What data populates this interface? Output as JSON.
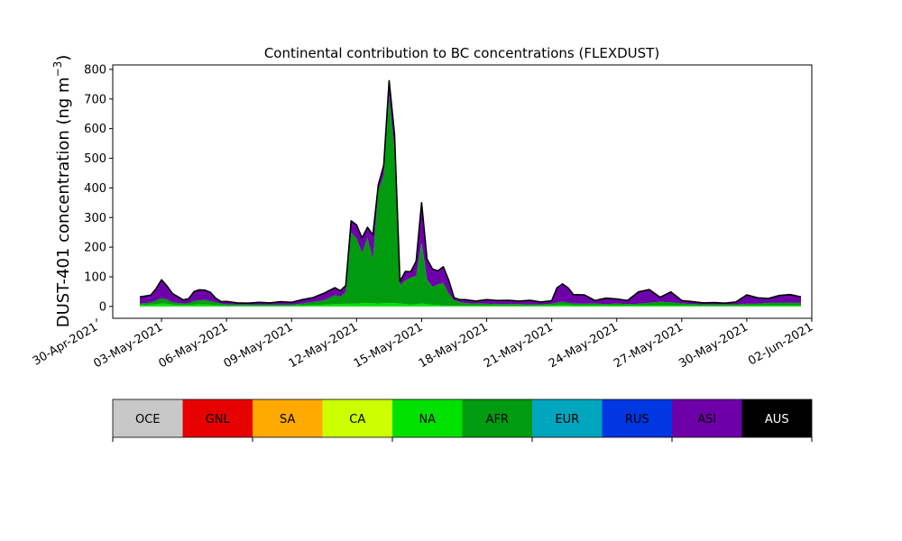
{
  "chart_data": {
    "type": "area",
    "title": "Continental contribution to BC concentrations (FLEXDUST)",
    "ylabel_main": "DUST-401 concentration (ng m",
    "ylabel_sup": "−3",
    "ylabel_close": ")",
    "xlabel": "",
    "ylim": [
      -40,
      815
    ],
    "xlim": [
      "2021-04-30T18:00",
      "2021-06-02T00:00"
    ],
    "y_ticks": [
      0,
      100,
      200,
      300,
      400,
      500,
      600,
      700,
      800
    ],
    "x_ticks": [
      "2021-04-30",
      "2021-05-03",
      "2021-05-06",
      "2021-05-09",
      "2021-05-12",
      "2021-05-15",
      "2021-05-18",
      "2021-05-21",
      "2021-05-24",
      "2021-05-27",
      "2021-05-30",
      "2021-06-02"
    ],
    "x_tick_labels": [
      "30-Apr-2021",
      "03-May-2021",
      "06-May-2021",
      "09-May-2021",
      "12-May-2021",
      "15-May-2021",
      "18-May-2021",
      "21-May-2021",
      "24-May-2021",
      "27-May-2021",
      "30-May-2021",
      "02-Jun-2021"
    ],
    "grid": false,
    "legend_position": "bottom colorbar",
    "legend": [
      {
        "name": "OCE",
        "color": "#c8c8c8",
        "text_color": "#000000"
      },
      {
        "name": "GNL",
        "color": "#e60000",
        "text_color": "#000000"
      },
      {
        "name": "SA",
        "color": "#ffaa00",
        "text_color": "#000000"
      },
      {
        "name": "CA",
        "color": "#ccff00",
        "text_color": "#000000"
      },
      {
        "name": "NA",
        "color": "#00e100",
        "text_color": "#000000"
      },
      {
        "name": "AFR",
        "color": "#009b0f",
        "text_color": "#000000"
      },
      {
        "name": "EUR",
        "color": "#00a5be",
        "text_color": "#000000"
      },
      {
        "name": "RUS",
        "color": "#0037e1",
        "text_color": "#000000"
      },
      {
        "name": "ASI",
        "color": "#6e00aa",
        "text_color": "#000000"
      },
      {
        "name": "AUS",
        "color": "#000000",
        "text_color": "#ffffff"
      }
    ],
    "x": [
      "2021-05-02T00:00",
      "2021-05-02T12:00",
      "2021-05-02T18:00",
      "2021-05-03T00:00",
      "2021-05-03T06:00",
      "2021-05-03T12:00",
      "2021-05-04T00:00",
      "2021-05-04T06:00",
      "2021-05-04T12:00",
      "2021-05-04T18:00",
      "2021-05-05T00:00",
      "2021-05-05T06:00",
      "2021-05-05T12:00",
      "2021-05-05T18:00",
      "2021-05-06T00:00",
      "2021-05-06T12:00",
      "2021-05-07T00:00",
      "2021-05-07T12:00",
      "2021-05-08T00:00",
      "2021-05-08T12:00",
      "2021-05-09T00:00",
      "2021-05-09T12:00",
      "2021-05-10T00:00",
      "2021-05-10T12:00",
      "2021-05-11T00:00",
      "2021-05-11T06:00",
      "2021-05-11T12:00",
      "2021-05-11T18:00",
      "2021-05-12T00:00",
      "2021-05-12T06:00",
      "2021-05-12T12:00",
      "2021-05-12T18:00",
      "2021-05-13T00:00",
      "2021-05-13T06:00",
      "2021-05-13T12:00",
      "2021-05-13T18:00",
      "2021-05-14T00:00",
      "2021-05-14T06:00",
      "2021-05-14T12:00",
      "2021-05-14T18:00",
      "2021-05-15T00:00",
      "2021-05-15T06:00",
      "2021-05-15T12:00",
      "2021-05-15T18:00",
      "2021-05-16T00:00",
      "2021-05-16T06:00",
      "2021-05-16T12:00",
      "2021-05-16T18:00",
      "2021-05-17T00:00",
      "2021-05-17T12:00",
      "2021-05-18T00:00",
      "2021-05-18T12:00",
      "2021-05-19T00:00",
      "2021-05-19T12:00",
      "2021-05-20T00:00",
      "2021-05-20T12:00",
      "2021-05-21T00:00",
      "2021-05-21T06:00",
      "2021-05-21T12:00",
      "2021-05-21T18:00",
      "2021-05-22T00:00",
      "2021-05-22T12:00",
      "2021-05-23T00:00",
      "2021-05-23T12:00",
      "2021-05-24T00:00",
      "2021-05-24T12:00",
      "2021-05-25T00:00",
      "2021-05-25T12:00",
      "2021-05-26T00:00",
      "2021-05-26T12:00",
      "2021-05-27T00:00",
      "2021-05-27T12:00",
      "2021-05-28T00:00",
      "2021-05-28T12:00",
      "2021-05-29T00:00",
      "2021-05-29T12:00",
      "2021-05-30T00:00",
      "2021-05-30T12:00",
      "2021-05-31T00:00",
      "2021-05-31T12:00",
      "2021-06-01T00:00",
      "2021-06-01T12:00"
    ],
    "series": [
      {
        "name": "NA",
        "color": "#00e100",
        "values": [
          5,
          6,
          8,
          10,
          9,
          6,
          5,
          5,
          6,
          7,
          7,
          6,
          5,
          4,
          3,
          3,
          3,
          3,
          3,
          3,
          3,
          4,
          5,
          6,
          8,
          8,
          9,
          9,
          10,
          11,
          12,
          11,
          10,
          11,
          12,
          11,
          10,
          8,
          7,
          8,
          10,
          8,
          6,
          5,
          4,
          3,
          3,
          3,
          3,
          3,
          3,
          3,
          3,
          3,
          3,
          3,
          4,
          5,
          6,
          5,
          4,
          4,
          4,
          4,
          4,
          4,
          4,
          4,
          4,
          4,
          4,
          3,
          3,
          3,
          3,
          3,
          3,
          4,
          4,
          4,
          4,
          4
        ]
      },
      {
        "name": "AFR",
        "color": "#009b0f",
        "values": [
          5,
          7,
          12,
          18,
          15,
          8,
          5,
          6,
          12,
          14,
          15,
          12,
          9,
          6,
          4,
          3,
          3,
          3,
          3,
          3,
          3,
          6,
          10,
          15,
          30,
          25,
          40,
          240,
          220,
          170,
          220,
          150,
          380,
          430,
          700,
          510,
          60,
          80,
          90,
          95,
          200,
          80,
          60,
          70,
          75,
          40,
          18,
          12,
          8,
          7,
          6,
          5,
          5,
          5,
          4,
          4,
          5,
          8,
          10,
          8,
          6,
          5,
          6,
          4,
          6,
          4,
          5,
          8,
          12,
          10,
          6,
          5,
          4,
          4,
          4,
          4,
          6,
          5,
          8,
          8,
          8,
          8
        ]
      },
      {
        "name": "EUR",
        "color": "#00a5be",
        "values": [
          0,
          0,
          0,
          0,
          0,
          0,
          0,
          0,
          0,
          0,
          0,
          0,
          0,
          0,
          0,
          0,
          0,
          0,
          0,
          0,
          0,
          0,
          0,
          0,
          0,
          0,
          0,
          0,
          0,
          0,
          0,
          0,
          0,
          0,
          0,
          0,
          0,
          0,
          0,
          0,
          5,
          2,
          0,
          0,
          0,
          0,
          0,
          0,
          0,
          0,
          0,
          0,
          0,
          0,
          0,
          0,
          0,
          0,
          0,
          0,
          0,
          0,
          0,
          0,
          0,
          0,
          0,
          0,
          0,
          0,
          0,
          0,
          0,
          0,
          0,
          0,
          0,
          0,
          0,
          0,
          0,
          0
        ]
      },
      {
        "name": "ASI",
        "color": "#6e00aa",
        "values": [
          22,
          25,
          40,
          62,
          45,
          30,
          12,
          15,
          32,
          35,
          33,
          30,
          14,
          6,
          10,
          6,
          5,
          8,
          6,
          10,
          8,
          13,
          15,
          24,
          25,
          20,
          21,
          40,
          45,
          50,
          35,
          80,
          20,
          35,
          50,
          60,
          15,
          30,
          20,
          50,
          135,
          70,
          60,
          45,
          55,
          45,
          8,
          8,
          12,
          8,
          14,
          12,
          13,
          10,
          14,
          8,
          10,
          50,
          60,
          50,
          30,
          30,
          10,
          20,
          15,
          12,
          40,
          45,
          15,
          35,
          10,
          8,
          5,
          6,
          4,
          8,
          30,
          20,
          15,
          25,
          28,
          20
        ]
      }
    ]
  }
}
